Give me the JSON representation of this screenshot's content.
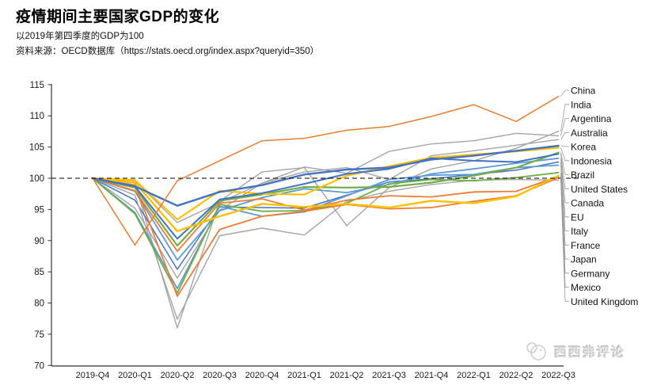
{
  "header": {
    "title": "疫情期间主要国家GDP的变化",
    "subtitle": "以2019年第四季度的GDP为100",
    "source": "资料来源：OECD数据库（https://stats.oecd.org/index.aspx?queryid=350）"
  },
  "watermark": {
    "text": "西西弗评论"
  },
  "chart_data": {
    "type": "line",
    "title": "疫情期间主要国家GDP的变化",
    "xlabel": "",
    "ylabel": "",
    "ylim": [
      70,
      115
    ],
    "yticks": [
      70,
      75,
      80,
      85,
      90,
      95,
      100,
      105,
      110,
      115
    ],
    "baseline": {
      "value": 100,
      "style": "dashed",
      "color": "#000000"
    },
    "grid": false,
    "legend_position": "right-edge-labels",
    "axis_color": "#333333",
    "leader_line_color": "#999999",
    "categories": [
      "2019-Q4",
      "2020-Q1",
      "2020-Q2",
      "2020-Q3",
      "2020-Q4",
      "2021-Q1",
      "2021-Q2",
      "2021-Q3",
      "2021-Q4",
      "2022-Q1",
      "2022-Q2",
      "2022-Q3"
    ],
    "series": [
      {
        "name": "China",
        "color": "#ED7D31",
        "width": 1.5,
        "values": [
          100,
          89.3,
          99.6,
          102.8,
          106.0,
          106.4,
          107.7,
          108.3,
          109.9,
          111.8,
          109.1,
          113.1
        ]
      },
      {
        "name": "India",
        "color": "#A5A5A5",
        "width": 1.4,
        "values": [
          100,
          99.2,
          76.0,
          96.3,
          101.0,
          101.7,
          92.4,
          98.5,
          101.5,
          102.8,
          104.8,
          107.5
        ]
      },
      {
        "name": "Argentina",
        "color": "#A5A5A5",
        "width": 1.4,
        "values": [
          100,
          95.2,
          84.0,
          94.9,
          99.2,
          101.8,
          100.8,
          104.3,
          105.5,
          106.0,
          107.2,
          106.8
        ]
      },
      {
        "name": "Australia",
        "color": "#A5A5A5",
        "width": 1.4,
        "values": [
          100,
          99.6,
          92.9,
          96.1,
          99.2,
          101.0,
          101.7,
          99.8,
          103.6,
          104.4,
          105.3,
          106.2
        ]
      },
      {
        "name": "Korea",
        "color": "#4472C4",
        "width": 2.4,
        "values": [
          100,
          98.7,
          95.6,
          97.8,
          98.9,
          100.6,
          101.4,
          101.7,
          103.0,
          103.6,
          104.4,
          105.2
        ]
      },
      {
        "name": "Indonesia",
        "color": "#FFC000",
        "width": 2.2,
        "values": [
          100,
          99.7,
          93.4,
          98.0,
          97.5,
          97.4,
          100.4,
          101.9,
          103.3,
          103.8,
          104.3,
          104.9
        ]
      },
      {
        "name": "Brazil",
        "color": "#70AD47",
        "width": 2.2,
        "values": [
          100,
          98.5,
          89.2,
          96.4,
          97.4,
          98.6,
          98.5,
          98.6,
          99.3,
          100.4,
          101.7,
          104.1
        ]
      },
      {
        "name": "United States",
        "color": "#4472C4",
        "width": 2.0,
        "values": [
          100,
          98.7,
          90.3,
          96.6,
          97.6,
          99.1,
          100.7,
          101.5,
          103.2,
          102.8,
          102.6,
          103.9
        ]
      },
      {
        "name": "Canada",
        "color": "#5B9BD5",
        "width": 1.8,
        "values": [
          100,
          97.9,
          86.9,
          94.8,
          96.9,
          98.3,
          97.7,
          99.0,
          100.7,
          101.5,
          102.4,
          103.2
        ]
      },
      {
        "name": "EU",
        "color": "#4472C4",
        "width": 1.5,
        "values": [
          100,
          96.5,
          85.4,
          95.4,
          95.3,
          95.2,
          97.3,
          99.4,
          99.9,
          100.6,
          101.3,
          102.6
        ]
      },
      {
        "name": "Italy",
        "color": "#5B9BD5",
        "width": 1.8,
        "values": [
          100,
          94.5,
          82.3,
          95.5,
          93.9,
          94.6,
          97.2,
          99.8,
          100.5,
          100.6,
          101.7,
          102.1
        ]
      },
      {
        "name": "France",
        "color": "#70AD47",
        "width": 1.8,
        "values": [
          100,
          94.3,
          81.6,
          95.8,
          94.7,
          94.8,
          96.0,
          99.1,
          99.8,
          99.6,
          100.1,
          100.9
        ]
      },
      {
        "name": "Japan",
        "color": "#FFC000",
        "width": 2.4,
        "values": [
          100,
          99.3,
          91.5,
          93.9,
          95.9,
          95.4,
          95.9,
          95.3,
          96.4,
          96.0,
          97.1,
          100.4
        ]
      },
      {
        "name": "Germany",
        "color": "#ED7D31",
        "width": 1.8,
        "values": [
          100,
          98.0,
          88.3,
          96.0,
          96.7,
          94.9,
          96.5,
          97.2,
          97.0,
          97.8,
          97.9,
          100.3
        ]
      },
      {
        "name": "Mexico",
        "color": "#ED7D31",
        "width": 1.8,
        "values": [
          100,
          98.9,
          81.1,
          91.8,
          93.9,
          94.7,
          95.8,
          95.1,
          95.3,
          96.3,
          97.2,
          100.1
        ]
      },
      {
        "name": "United Kingdom",
        "color": "#A5A5A5",
        "width": 1.4,
        "values": [
          100,
          97.3,
          77.4,
          90.8,
          92.0,
          90.9,
          96.3,
          97.9,
          99.0,
          99.7,
          99.8,
          99.7
        ]
      }
    ]
  }
}
